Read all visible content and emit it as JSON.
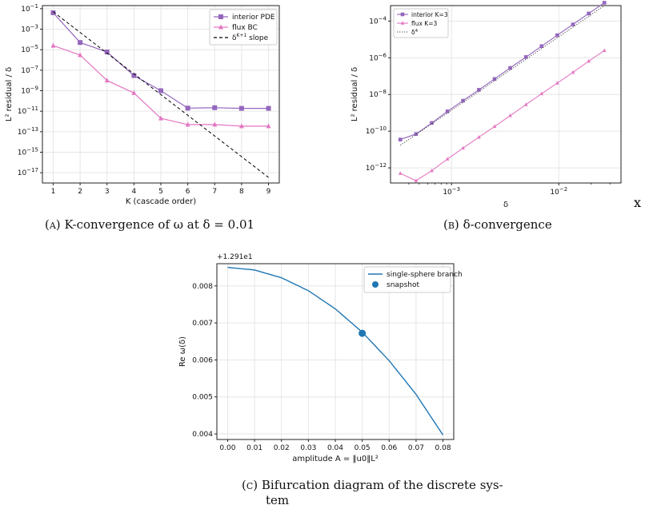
{
  "chart_data": [
    {
      "type": "line",
      "xlabel": "K (cascade order)",
      "ylabel": "L² residual / δ",
      "yscale": "log",
      "xlim": [
        0.6,
        9.4
      ],
      "ylim": [
        1e-18,
        0.2
      ],
      "grid": true,
      "legend_position": "top-right",
      "xticks": [
        "1",
        "2",
        "3",
        "4",
        "5",
        "6",
        "7",
        "8",
        "9"
      ],
      "yticks": [
        {
          "v": 0.1,
          "b": "10",
          "e": "−1"
        },
        {
          "v": 0.001,
          "b": "10",
          "e": "−3"
        },
        {
          "v": 1e-05,
          "b": "10",
          "e": "−5"
        },
        {
          "v": 1e-07,
          "b": "10",
          "e": "−7"
        },
        {
          "v": 1e-09,
          "b": "10",
          "e": "−9"
        },
        {
          "v": 1e-11,
          "b": "10",
          "e": "−11"
        },
        {
          "v": 1e-13,
          "b": "10",
          "e": "−13"
        },
        {
          "v": 1e-15,
          "b": "10",
          "e": "−15"
        },
        {
          "v": 1e-17,
          "b": "10",
          "e": "−17"
        }
      ],
      "series": [
        {
          "name": "interior PDE",
          "color": "#9467bd",
          "marker": "square",
          "x": [
            1,
            2,
            3,
            4,
            5,
            6,
            7,
            8,
            9
          ],
          "y": [
            0.04,
            5e-05,
            6e-06,
            3e-08,
            1e-09,
            2e-11,
            2.2e-11,
            1.9e-11,
            1.9e-11
          ]
        },
        {
          "name": "flux BC",
          "color": "#e377c2",
          "marker": "triangle",
          "x": [
            1,
            2,
            3,
            4,
            5,
            6,
            7,
            8,
            9
          ],
          "y": [
            2.5e-05,
            3e-06,
            1e-08,
            6e-10,
            2e-12,
            5e-13,
            5e-13,
            3.5e-13,
            3.5e-13
          ]
        },
        {
          "name": "δK+1 slope",
          "color": "#000000",
          "marker": "none",
          "dash": "dashed",
          "x": [
            1,
            9
          ],
          "y": [
            0.05,
            3.5e-18
          ]
        }
      ]
    },
    {
      "type": "line",
      "xlabel": "δ",
      "ylabel": "L² residual / δ",
      "xscale": "log",
      "yscale": "log",
      "xlim": [
        0.00027,
        0.038
      ],
      "ylim": [
        1.5e-13,
        0.0007
      ],
      "grid": true,
      "legend_position": "top-left",
      "xticks": [
        {
          "v": 0.001,
          "b": "10",
          "e": "−3"
        },
        {
          "v": 0.01,
          "b": "10",
          "e": "−2"
        }
      ],
      "yticks": [
        {
          "v": 0.0001,
          "b": "10",
          "e": "−4"
        },
        {
          "v": 1e-06,
          "b": "10",
          "e": "−6"
        },
        {
          "v": 1e-08,
          "b": "10",
          "e": "−8"
        },
        {
          "v": 1e-10,
          "b": "10",
          "e": "−10"
        },
        {
          "v": 1e-12,
          "b": "10",
          "e": "−12"
        }
      ],
      "series": [
        {
          "name": "interior K=3",
          "color": "#9467bd",
          "marker": "square",
          "x": [
            0.000333,
            0.000467,
            0.000654,
            0.000916,
            0.00128,
            0.0018,
            0.00252,
            0.00352,
            0.00494,
            0.00691,
            0.00968,
            0.01356,
            0.019,
            0.0266
          ],
          "y": [
            3.5e-11,
            7e-11,
            2.8e-10,
            1.2e-09,
            4.6e-09,
            1.8e-08,
            7e-08,
            2.8e-07,
            1.1e-06,
            4.3e-06,
            1.7e-05,
            6.6e-05,
            0.00026,
            0.001
          ]
        },
        {
          "name": "flux K=3",
          "color": "#e377c2",
          "marker": "triangle",
          "x": [
            0.000333,
            0.000467,
            0.000654,
            0.000916,
            0.00128,
            0.0018,
            0.00252,
            0.00352,
            0.00494,
            0.00691,
            0.00968,
            0.01356,
            0.019,
            0.0266
          ],
          "y": [
            5e-13,
            2e-13,
            7e-13,
            3e-12,
            1.2e-11,
            4.7e-11,
            1.8e-10,
            7e-10,
            2.8e-09,
            1.1e-08,
            4.2e-08,
            1.6e-07,
            6.5e-07,
            2.5e-06
          ]
        },
        {
          "name": "δ4",
          "color": "#444444",
          "marker": "none",
          "dash": "dotted",
          "x": [
            0.000333,
            0.0266
          ],
          "y": [
            1.7e-11,
            0.0007
          ]
        }
      ]
    },
    {
      "type": "line",
      "xlabel": "amplitude A = ‖u0‖L²",
      "ylabel": "Re ω(δ)",
      "offset_text": "+1.291e1",
      "xlim": [
        -0.004,
        0.084
      ],
      "ylim": [
        0.00385,
        0.0086
      ],
      "grid": true,
      "legend_position": "top-right",
      "xticks": [
        "0.00",
        "0.01",
        "0.02",
        "0.03",
        "0.04",
        "0.05",
        "0.06",
        "0.07",
        "0.08"
      ],
      "xtick_values": [
        0,
        0.01,
        0.02,
        0.03,
        0.04,
        0.05,
        0.06,
        0.07,
        0.08
      ],
      "yticks": [
        "0.004",
        "0.005",
        "0.006",
        "0.007",
        "0.008"
      ],
      "ytick_values": [
        0.004,
        0.005,
        0.006,
        0.007,
        0.008
      ],
      "series": [
        {
          "name": "single-sphere branch",
          "color": "#1f77b4",
          "marker": "none",
          "x": [
            0,
            0.01,
            0.02,
            0.03,
            0.04,
            0.05,
            0.06,
            0.07,
            0.08
          ],
          "y": [
            0.0085,
            0.00843,
            0.00822,
            0.00787,
            0.00738,
            0.00675,
            0.00598,
            0.00507,
            0.00397
          ]
        },
        {
          "name": "snapshot",
          "color": "#1f77b4",
          "marker": "circle",
          "x": [
            0.05
          ],
          "y": [
            0.00672
          ]
        }
      ]
    }
  ],
  "captions": {
    "a_label": "(a)",
    "a_text": "K-convergence of ω at δ = 0.01",
    "b_label": "(b)",
    "b_text": "δ-convergence",
    "c_label": "(c)",
    "c_line1": "Bifurcation diagram of the discrete sys-",
    "c_line2": "tem",
    "stray": "x"
  }
}
